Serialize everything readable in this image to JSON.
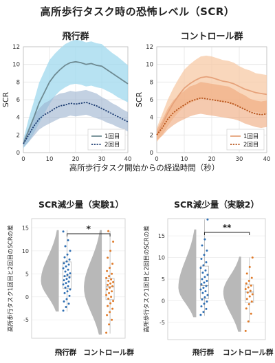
{
  "title": "高所歩行タスク時の恐怖レベル（SCR）",
  "colors": {
    "flight_band": "#9fd8ee",
    "flight_line1": "#6e8a92",
    "flight_line2": "#1f3f74",
    "flight_band2": "#9bb3cf",
    "control_band": "#f7c9a6",
    "control_line1": "#e6a27a",
    "control_line2": "#b8541a",
    "control_band2": "#eea77a",
    "violin": "#b8b8b8",
    "dot_flight": "#2f6fb3",
    "dot_control": "#e07b2a"
  },
  "chart_data": [
    {
      "type": "line",
      "title": "飛行群",
      "xlabel": "",
      "ylabel": "SCR",
      "xlim": [
        0,
        40
      ],
      "ylim": [
        0,
        12
      ],
      "xticks": [
        "0",
        "10",
        "20",
        "30",
        "40"
      ],
      "yticks": [
        "0",
        "2",
        "4",
        "6",
        "8",
        "10",
        "12"
      ],
      "grid": true,
      "legend_position": "bottom-right",
      "x": [
        0,
        2,
        4,
        6,
        8,
        10,
        12,
        14,
        16,
        18,
        20,
        22,
        24,
        26,
        28,
        30,
        32,
        34,
        36,
        38,
        40
      ],
      "series": [
        {
          "name": "1回目",
          "values": [
            1.0,
            2.5,
            4.0,
            5.6,
            6.8,
            8.0,
            8.8,
            9.4,
            9.9,
            10.2,
            10.3,
            10.2,
            10.0,
            10.1,
            9.9,
            9.8,
            9.4,
            9.0,
            8.6,
            8.2,
            7.8
          ],
          "lower": [
            0.5,
            1.2,
            2.2,
            3.3,
            4.4,
            5.5,
            6.4,
            7.0,
            7.4,
            7.7,
            7.8,
            7.7,
            7.5,
            7.6,
            7.4,
            7.3,
            7.0,
            6.7,
            6.3,
            6.0,
            5.7
          ],
          "upper": [
            1.5,
            3.8,
            5.8,
            7.9,
            9.2,
            10.5,
            11.2,
            11.8,
            12.3,
            12.6,
            12.8,
            12.7,
            12.5,
            12.6,
            12.4,
            12.3,
            11.8,
            11.3,
            10.9,
            10.4,
            9.9
          ]
        },
        {
          "name": "2回目",
          "values": [
            1.0,
            2.0,
            3.0,
            3.8,
            4.3,
            4.6,
            5.0,
            5.3,
            5.4,
            5.6,
            5.5,
            5.6,
            5.7,
            5.5,
            5.3,
            5.0,
            4.7,
            4.4,
            4.1,
            3.8,
            3.5
          ],
          "lower": [
            0.6,
            1.2,
            1.9,
            2.6,
            3.0,
            3.3,
            3.6,
            3.9,
            4.0,
            4.2,
            4.1,
            4.2,
            4.3,
            4.1,
            3.9,
            3.7,
            3.4,
            3.2,
            2.9,
            2.7,
            2.4
          ],
          "upper": [
            1.4,
            2.8,
            4.1,
            5.0,
            5.6,
            5.9,
            6.4,
            6.7,
            6.8,
            7.0,
            6.9,
            7.0,
            7.1,
            6.9,
            6.7,
            6.3,
            6.0,
            5.6,
            5.3,
            4.9,
            4.6
          ]
        }
      ]
    },
    {
      "type": "line",
      "title": "コントロール群",
      "xlabel": "",
      "ylabel": "SCR",
      "xlim": [
        0,
        40
      ],
      "ylim": [
        0,
        12
      ],
      "xticks": [
        "0",
        "10",
        "20",
        "30",
        "40"
      ],
      "yticks": [
        "0",
        "2",
        "4",
        "6",
        "8",
        "10",
        "12"
      ],
      "grid": true,
      "legend_position": "bottom-right",
      "x": [
        0,
        2,
        4,
        6,
        8,
        10,
        12,
        14,
        16,
        18,
        20,
        22,
        24,
        26,
        28,
        30,
        32,
        34,
        36,
        38,
        40
      ],
      "series": [
        {
          "name": "1回目",
          "values": [
            2.0,
            3.2,
            4.5,
            5.6,
            6.5,
            7.3,
            7.8,
            8.2,
            8.5,
            8.6,
            8.5,
            8.3,
            8.1,
            8.0,
            7.8,
            7.5,
            7.2,
            7.0,
            6.8,
            6.7,
            6.6
          ],
          "lower": [
            1.2,
            2.0,
            3.0,
            3.9,
            4.6,
            5.2,
            5.6,
            5.9,
            6.1,
            6.2,
            6.1,
            5.9,
            5.7,
            5.6,
            5.4,
            5.2,
            4.9,
            4.7,
            4.6,
            4.5,
            4.4
          ],
          "upper": [
            2.8,
            4.4,
            6.0,
            7.3,
            8.4,
            9.4,
            10.0,
            10.5,
            10.9,
            11.0,
            10.9,
            10.7,
            10.5,
            10.4,
            10.2,
            9.8,
            9.5,
            9.3,
            9.0,
            8.9,
            8.8
          ]
        },
        {
          "name": "2回目",
          "values": [
            2.0,
            2.8,
            3.8,
            4.5,
            5.0,
            5.4,
            5.8,
            6.0,
            6.2,
            6.1,
            6.0,
            5.9,
            5.8,
            5.7,
            5.5,
            5.2,
            4.9,
            4.6,
            4.4,
            4.3,
            4.4
          ],
          "lower": [
            1.4,
            1.9,
            2.6,
            3.1,
            3.5,
            3.8,
            4.1,
            4.3,
            4.4,
            4.3,
            4.2,
            4.1,
            4.0,
            3.9,
            3.8,
            3.6,
            3.3,
            3.1,
            2.9,
            2.8,
            2.9
          ],
          "upper": [
            2.6,
            3.7,
            5.0,
            5.9,
            6.5,
            7.0,
            7.5,
            7.7,
            8.0,
            7.9,
            7.8,
            7.7,
            7.6,
            7.5,
            7.2,
            6.8,
            6.5,
            6.1,
            5.9,
            5.8,
            5.9
          ]
        }
      ]
    },
    {
      "type": "scatter",
      "title": "SCR減少量（実験1）",
      "ylabel": "高所歩行タスク1回目と2回目のSCRの差",
      "categories": [
        "飛行群",
        "コントロール群"
      ],
      "ylim": [
        -9,
        17
      ],
      "yticks": [
        "-5",
        "0",
        "5",
        "10",
        "15"
      ],
      "significance": "*",
      "groups": [
        {
          "name": "飛行群",
          "median": 4.5,
          "q1": 1.8,
          "q3": 7.6,
          "whisker_low": -3.2,
          "whisker_high": 14.5,
          "violin_min": -3.2,
          "violin_peak": 3.5,
          "violin_max": 14.5,
          "points": [
            -3.0,
            -2.2,
            -1.5,
            -1.0,
            -0.5,
            0.2,
            0.8,
            1.2,
            1.6,
            2.0,
            2.3,
            2.7,
            3.0,
            3.3,
            3.6,
            3.9,
            4.2,
            4.5,
            4.8,
            5.1,
            5.5,
            5.9,
            6.2,
            6.6,
            7.0,
            7.3,
            7.7,
            8.1,
            8.6,
            9.2,
            10.0,
            11.0,
            12.3,
            14.2
          ]
        },
        {
          "name": "コントロール群",
          "median": 2.2,
          "q1": -0.6,
          "q3": 4.0,
          "whisker_low": -8.0,
          "whisker_high": 14.3,
          "violin_min": -8.2,
          "violin_peak": 2.0,
          "violin_max": 14.5,
          "points": [
            -7.8,
            -6.0,
            -5.0,
            -4.0,
            -3.3,
            -2.6,
            -2.0,
            -1.4,
            -0.9,
            -0.4,
            0.0,
            0.4,
            0.8,
            1.2,
            1.6,
            2.0,
            2.3,
            2.6,
            2.9,
            3.2,
            3.5,
            3.8,
            4.1,
            4.5,
            5.0,
            5.6,
            6.3,
            7.2,
            8.5,
            10.0,
            12.0,
            14.3
          ]
        }
      ]
    },
    {
      "type": "scatter",
      "title": "SCR減少量（実験2）",
      "ylabel": "高所歩行タスク1回目と2回目のSCRの差",
      "categories": [
        "飛行群",
        "コントロール群"
      ],
      "ylim": [
        -9,
        19
      ],
      "yticks": [
        "-5",
        "0",
        "5",
        "10",
        "15"
      ],
      "significance": "**",
      "groups": [
        {
          "name": "飛行群",
          "median": 3.5,
          "q1": 0.5,
          "q3": 8.0,
          "whisker_low": -3.5,
          "whisker_high": 18.8,
          "violin_min": -3.8,
          "violin_peak": 3.0,
          "violin_max": 16.5,
          "points": [
            -3.3,
            -2.6,
            -1.9,
            -1.3,
            -0.7,
            -0.2,
            0.3,
            0.8,
            1.3,
            1.8,
            2.2,
            2.6,
            3.0,
            3.4,
            3.8,
            4.2,
            4.6,
            5.0,
            5.5,
            6.0,
            6.5,
            7.0,
            7.6,
            8.2,
            8.9,
            9.7,
            10.6,
            11.6,
            12.8,
            14.2,
            18.8
          ]
        },
        {
          "name": "コントロール群",
          "median": 2.0,
          "q1": -0.4,
          "q3": 3.7,
          "whisker_low": -5.0,
          "whisker_high": 10.0,
          "violin_min": -7.2,
          "violin_peak": 2.0,
          "violin_max": 10.2,
          "points": [
            -7.0,
            -4.8,
            -3.0,
            -1.8,
            -0.8,
            -0.2,
            0.4,
            1.0,
            1.5,
            1.9,
            2.3,
            2.7,
            3.1,
            3.5,
            4.0,
            4.6,
            5.3,
            6.3,
            7.8,
            10.0
          ]
        }
      ]
    }
  ],
  "line_xlabel": "高所歩行タスク開始からの経過時間（秒）"
}
